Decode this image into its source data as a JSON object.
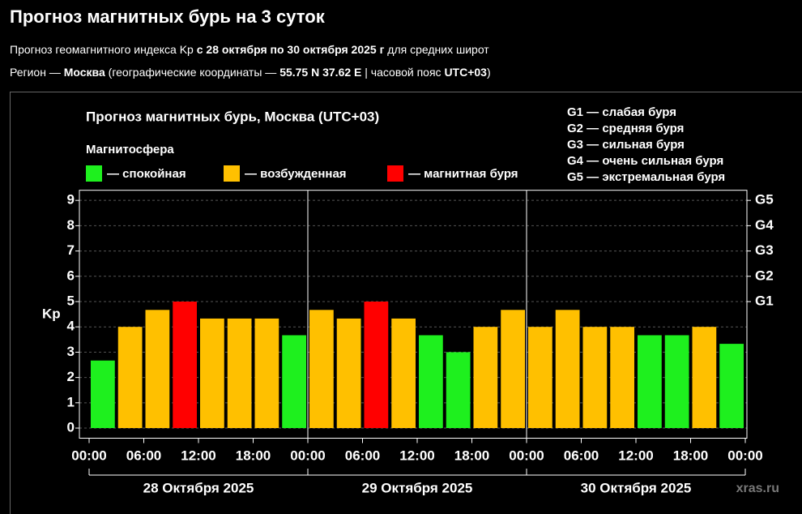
{
  "header": {
    "title": "Прогноз магнитных бурь на 3 суток",
    "lines": [
      [
        {
          "text": "Прогноз геомагнитного индекса Kp ",
          "bold": false
        },
        {
          "text": "с 28 октября по 30 октября 2025 г",
          "bold": true
        },
        {
          "text": " для средних широт",
          "bold": false
        }
      ],
      [
        {
          "text": "Регион — ",
          "bold": false
        },
        {
          "text": "Москва",
          "bold": true
        },
        {
          "text": " (географические координаты — ",
          "bold": false
        },
        {
          "text": "55.75 N 37.62 E",
          "bold": true
        },
        {
          "text": " | часовой пояс ",
          "bold": false
        },
        {
          "text": "UTC+03",
          "bold": true
        },
        {
          "text": ")",
          "bold": false
        }
      ]
    ]
  },
  "chart_data": {
    "type": "bar",
    "title": "Прогноз магнитных бурь, Москва (UTC+03)",
    "legend_title": "Магнитосфера",
    "legend": [
      {
        "name": "— спокойная",
        "color": "#1ef01e"
      },
      {
        "name": "— возбужденная",
        "color": "#ffc000"
      },
      {
        "name": "— магнитная буря",
        "color": "#ff0000"
      }
    ],
    "storm_scale": [
      "G1 — слабая буря",
      "G2 — средняя буря",
      "G3 — сильная буря",
      "G4 — очень сильная буря",
      "G5 — экстремальная буря"
    ],
    "ylabel": "Kp",
    "x": [
      0,
      3,
      6,
      9,
      12,
      15,
      18,
      21,
      24,
      27,
      30,
      33,
      36,
      39,
      42,
      45,
      48,
      51,
      54,
      57,
      60,
      63,
      66,
      69
    ],
    "values": [
      2.67,
      4,
      4.67,
      5,
      4.33,
      4.33,
      4.33,
      3.67,
      4.67,
      4.33,
      5,
      4.33,
      3.67,
      3,
      4,
      4.67,
      4,
      4.67,
      4,
      4,
      3.67,
      3.67,
      4,
      3.33
    ],
    "colors": [
      "#1ef01e",
      "#ffc000",
      "#ffc000",
      "#ff0000",
      "#ffc000",
      "#ffc000",
      "#ffc000",
      "#1ef01e",
      "#ffc000",
      "#ffc000",
      "#ff0000",
      "#ffc000",
      "#1ef01e",
      "#1ef01e",
      "#ffc000",
      "#ffc000",
      "#ffc000",
      "#ffc000",
      "#ffc000",
      "#ffc000",
      "#1ef01e",
      "#1ef01e",
      "#ffc000",
      "#1ef01e"
    ],
    "xlim": [
      0,
      72
    ],
    "xticks": [
      {
        "value": 0,
        "label": "00:00"
      },
      {
        "value": 6,
        "label": "06:00"
      },
      {
        "value": 12,
        "label": "12:00"
      },
      {
        "value": 18,
        "label": "18:00"
      },
      {
        "value": 24,
        "label": "00:00"
      },
      {
        "value": 30,
        "label": "06:00"
      },
      {
        "value": 36,
        "label": "12:00"
      },
      {
        "value": 42,
        "label": "18:00"
      },
      {
        "value": 48,
        "label": "00:00"
      },
      {
        "value": 54,
        "label": "06:00"
      },
      {
        "value": 60,
        "label": "12:00"
      },
      {
        "value": 66,
        "label": "18:00"
      },
      {
        "value": 72,
        "label": "00:00"
      }
    ],
    "day_labels": [
      "28 Октября 2025",
      "29 Октября 2025",
      "30 Октября 2025"
    ],
    "ylim": [
      -0.4,
      9.4
    ],
    "yticks": [
      0,
      1,
      2,
      3,
      4,
      5,
      6,
      7,
      8,
      9
    ],
    "y2lim": [
      -0.4,
      9.4
    ],
    "y2ticks": [
      {
        "value": 5,
        "label": "G1"
      },
      {
        "value": 6,
        "label": "G2"
      },
      {
        "value": 7,
        "label": "G3"
      },
      {
        "value": 8,
        "label": "G4"
      },
      {
        "value": 9,
        "label": "G5"
      }
    ],
    "grid": true,
    "watermark": "xras.ru"
  }
}
